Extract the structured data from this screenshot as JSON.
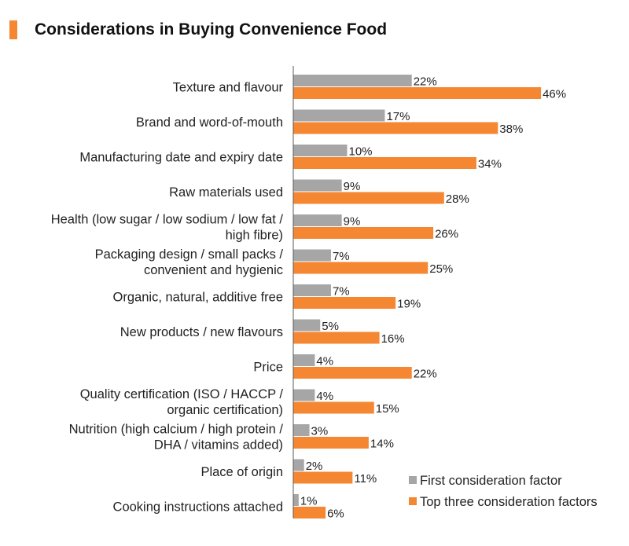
{
  "title": "Considerations in Buying Convenience Food",
  "colors": {
    "accent": "#F58632",
    "first": "#A6A6A6",
    "top3": "#F58632",
    "axis": "#595959"
  },
  "chart_data": {
    "type": "bar",
    "orientation": "horizontal",
    "title": "Considerations in Buying Convenience Food",
    "categories": [
      [
        "Texture and flavour"
      ],
      [
        "Brand and word-of-mouth"
      ],
      [
        "Manufacturing date and expiry date"
      ],
      [
        "Raw materials used"
      ],
      [
        "Health (low sugar / low sodium / low fat /",
        "high fibre)"
      ],
      [
        "Packaging design / small packs /",
        "convenient and hygienic"
      ],
      [
        "Organic, natural, additive free"
      ],
      [
        "New products / new flavours"
      ],
      [
        "Price"
      ],
      [
        "Quality certification (ISO / HACCP /",
        "organic certification)"
      ],
      [
        "Nutrition (high calcium / high protein /",
        "DHA / vitamins added)"
      ],
      [
        "Place of origin"
      ],
      [
        "Cooking instructions attached"
      ]
    ],
    "series": [
      {
        "name": "First consideration factor",
        "color": "#A6A6A6",
        "values": [
          22,
          17,
          10,
          9,
          9,
          7,
          7,
          5,
          4,
          4,
          3,
          2,
          1
        ]
      },
      {
        "name": "Top three consideration factors",
        "color": "#F58632",
        "values": [
          46,
          38,
          34,
          28,
          26,
          25,
          19,
          16,
          22,
          15,
          14,
          11,
          6
        ]
      }
    ],
    "value_suffix": "%",
    "xlim": [
      0,
      60
    ],
    "grid": false,
    "legend": "bottom-right"
  }
}
